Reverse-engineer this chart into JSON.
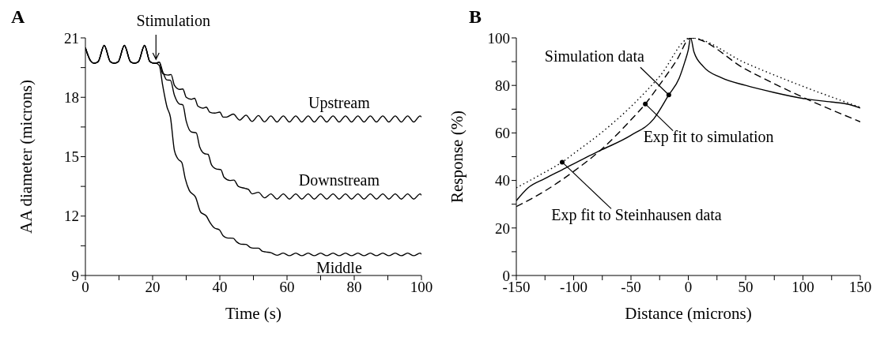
{
  "chart_data": [
    {
      "type": "line",
      "title": "A",
      "xlabel": "Time (s)",
      "ylabel": "AA diameter (microns)",
      "xlim": [
        0,
        100
      ],
      "ylim": [
        9,
        21
      ],
      "xticks": [
        0,
        {
          "value": 10,
          "label": null
        },
        20,
        {
          "value": 30,
          "label": null
        },
        40,
        {
          "value": 50,
          "label": null
        },
        60,
        {
          "value": 70,
          "label": null
        },
        80,
        {
          "value": 90,
          "label": null
        },
        100
      ],
      "yticks": [
        9,
        {
          "value": 10.5,
          "label": null
        },
        12,
        {
          "value": 13.5,
          "label": null
        },
        15,
        {
          "value": 16.5,
          "label": null
        },
        18,
        {
          "value": 19.5,
          "label": null
        },
        21
      ],
      "marker": "none",
      "line_style": "solid",
      "annotations": [
        {
          "text": "Stimulation",
          "x": 21,
          "y": 19.8
        }
      ],
      "series": [
        {
          "name": "Upstream",
          "color": "#000000",
          "x": [
            0,
            1.5,
            2.6,
            3.8,
            5.6,
            7.4,
            8.6,
            9.8,
            11.6,
            13.4,
            14.6,
            15.8,
            17.6,
            19.2,
            20.5,
            21,
            22,
            23,
            24.6,
            25.5,
            26.5,
            28,
            29,
            30,
            31.5,
            32.5,
            33.5,
            35,
            36,
            37,
            38.5,
            40,
            41,
            42,
            44,
            45.9,
            47.8,
            49.6,
            51.5,
            53.3,
            55.2,
            57,
            58.9,
            60.7,
            62.6,
            64.4,
            66.3,
            68.1,
            70,
            71.8,
            73.7,
            75.5,
            77.4,
            79.2,
            81.1,
            82.9,
            84.8,
            86.6,
            88.5,
            90.3,
            92.2,
            94,
            95.9,
            97.7,
            99.6,
            100
          ],
          "values": [
            20.5,
            19.85,
            19.72,
            19.8,
            20.62,
            19.8,
            19.72,
            19.8,
            20.62,
            19.8,
            19.72,
            19.8,
            20.62,
            19.8,
            19.72,
            19.72,
            19.78,
            19.2,
            19.12,
            19.15,
            18.6,
            18.4,
            18.42,
            18.0,
            17.9,
            17.95,
            17.55,
            17.45,
            17.5,
            17.25,
            17.2,
            17.25,
            17.0,
            17.0,
            17.15,
            16.85,
            17.1,
            16.78,
            17.08,
            16.76,
            17.06,
            16.75,
            17.06,
            16.75,
            17.06,
            16.75,
            17.06,
            16.75,
            17.06,
            16.75,
            17.06,
            16.75,
            17.06,
            16.75,
            17.06,
            16.75,
            17.06,
            16.75,
            17.06,
            16.75,
            17.06,
            16.75,
            17.06,
            16.75,
            17.06,
            17.0
          ]
        },
        {
          "name": "Downstream",
          "color": "#000000",
          "x": [
            0,
            1.5,
            2.6,
            3.8,
            5.6,
            7.4,
            8.6,
            9.8,
            11.6,
            13.4,
            14.6,
            15.8,
            17.6,
            19.2,
            20.5,
            21,
            22,
            23,
            24.2,
            25.3,
            26.5,
            28,
            29,
            30,
            31.5,
            33,
            34,
            35.5,
            36.5,
            37.5,
            39,
            40.3,
            41.3,
            43,
            44.2,
            45.5,
            47.5,
            48.5,
            49.6,
            51.5,
            53.3,
            55.2,
            57,
            58.9,
            60.7,
            62.6,
            64.4,
            66.3,
            68.1,
            70,
            71.8,
            73.7,
            75.5,
            77.4,
            79.2,
            81.1,
            82.9,
            84.8,
            86.6,
            88.5,
            90.3,
            92.2,
            94,
            95.9,
            97.7,
            99.6,
            100
          ],
          "values": [
            20.5,
            19.85,
            19.72,
            19.8,
            20.62,
            19.8,
            19.72,
            19.8,
            20.62,
            19.8,
            19.72,
            19.8,
            20.62,
            19.8,
            19.72,
            19.72,
            19.78,
            19.3,
            18.88,
            18.86,
            18.1,
            17.66,
            17.62,
            16.8,
            16.25,
            16.2,
            15.5,
            15.15,
            15.12,
            14.6,
            14.38,
            14.35,
            13.95,
            13.8,
            13.82,
            13.5,
            13.4,
            13.35,
            13.12,
            13.2,
            12.92,
            13.12,
            12.86,
            13.12,
            12.86,
            13.12,
            12.86,
            13.12,
            12.86,
            13.12,
            12.86,
            13.12,
            12.86,
            13.12,
            12.86,
            13.12,
            12.86,
            13.12,
            12.86,
            13.12,
            12.86,
            13.12,
            12.86,
            13.12,
            12.86,
            13.12,
            13.05
          ]
        },
        {
          "name": "Middle",
          "color": "#000000",
          "x": [
            0,
            1.5,
            2.6,
            3.8,
            5.6,
            7.4,
            8.6,
            9.8,
            11.6,
            13.4,
            14.6,
            15.8,
            17.6,
            19.2,
            20.5,
            21,
            22,
            23,
            24.3,
            25.3,
            26.5,
            27.5,
            28.7,
            29.7,
            30.9,
            32.8,
            34.3,
            36,
            37,
            38.4,
            39.9,
            41,
            42.1,
            44,
            45,
            46.3,
            47.8,
            49,
            50,
            51.5,
            52.7,
            53.7,
            55.2,
            57,
            58.9,
            60.7,
            62.6,
            64.4,
            66.3,
            68.1,
            70,
            71.8,
            73.7,
            75.5,
            77.4,
            79.2,
            81.1,
            82.9,
            84.8,
            86.6,
            88.5,
            90.3,
            92.2,
            94,
            95.9,
            97.7,
            99.6,
            100
          ],
          "values": [
            20.5,
            19.85,
            19.72,
            19.8,
            20.62,
            19.8,
            19.72,
            19.8,
            20.62,
            19.8,
            19.72,
            19.8,
            20.62,
            19.8,
            19.72,
            19.72,
            19.6,
            18.6,
            17.5,
            17.0,
            15.3,
            14.9,
            14.7,
            13.9,
            13.3,
            12.95,
            12.2,
            12.0,
            11.7,
            11.4,
            11.3,
            11.0,
            10.9,
            10.88,
            10.7,
            10.58,
            10.57,
            10.42,
            10.38,
            10.38,
            10.22,
            10.19,
            10.15,
            10.02,
            10.13,
            10.0,
            10.13,
            10.0,
            10.13,
            10.0,
            10.13,
            10.0,
            10.13,
            10.0,
            10.13,
            10.0,
            10.13,
            10.0,
            10.13,
            10.0,
            10.13,
            10.0,
            10.13,
            10.0,
            10.13,
            10.0,
            10.13,
            10.07
          ]
        }
      ]
    },
    {
      "type": "line",
      "title": "B",
      "xlabel": "Distance (microns)",
      "ylabel": "Response (%)",
      "xlim": [
        -150,
        150
      ],
      "ylim": [
        0,
        100
      ],
      "xticks": [
        -150,
        {
          "value": -125,
          "label": null
        },
        -100,
        {
          "value": -75,
          "label": null
        },
        -50,
        {
          "value": -25,
          "label": null
        },
        0,
        {
          "value": 25,
          "label": null
        },
        50,
        {
          "value": 75,
          "label": null
        },
        100,
        {
          "value": 125,
          "label": null
        },
        150
      ],
      "yticks": [
        0,
        {
          "value": 10,
          "label": null
        },
        20,
        {
          "value": 30,
          "label": null
        },
        40,
        {
          "value": 50,
          "label": null
        },
        60,
        {
          "value": 70,
          "label": null
        },
        80,
        {
          "value": 90,
          "label": null
        },
        100
      ],
      "marker": "none",
      "annotations": [
        {
          "text": "Simulation data",
          "x": -17,
          "y": 76
        },
        {
          "text": "Exp fit to simulation",
          "x": -37.5,
          "y": 72.2
        },
        {
          "text": "Exp fit to Steinhausen data",
          "x": -110,
          "y": 47.7
        }
      ],
      "series": [
        {
          "color": "#000000",
          "line_style": "solid",
          "x": [
            -150,
            -140,
            -125,
            -110,
            -90,
            -75,
            -50,
            -30,
            -17,
            -8,
            -3,
            0,
            2,
            5,
            13,
            28,
            50,
            75,
            100,
            125,
            140,
            150
          ],
          "values": [
            31.5,
            36.8,
            40.8,
            44.5,
            49.5,
            53,
            59,
            66,
            76,
            83,
            90,
            95,
            100,
            94,
            88,
            83.4,
            80,
            77,
            74.5,
            73,
            72,
            70.5
          ]
        },
        {
          "color": "#000000",
          "line_style": "dashed",
          "x": [
            -150,
            -125,
            -100,
            -75,
            -50,
            -37.5,
            -25,
            -10,
            2,
            50,
            100,
            150
          ],
          "values": [
            29,
            35.6,
            43.8,
            53.4,
            65.5,
            72.2,
            80.3,
            90.7,
            100,
            86.8,
            75,
            64.7
          ]
        },
        {
          "color": "#000000",
          "line_style": "dotted",
          "x": [
            -150,
            -125,
            -110,
            -100,
            -75,
            -50,
            -25,
            2,
            50,
            100,
            150
          ],
          "values": [
            36.9,
            43.5,
            47.7,
            51.3,
            60.4,
            71.1,
            83.8,
            100,
            89.4,
            79.6,
            70.8
          ]
        }
      ]
    }
  ]
}
